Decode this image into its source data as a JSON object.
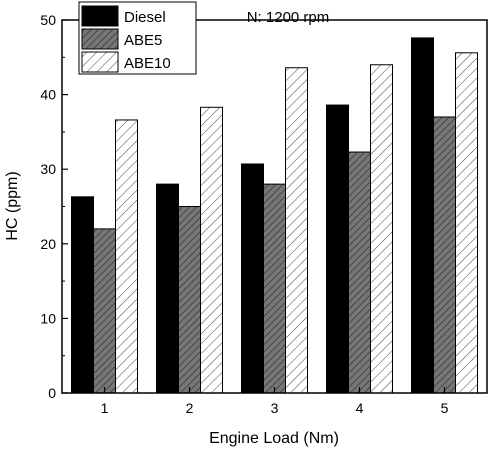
{
  "chart_data": {
    "type": "bar",
    "categories": [
      "1",
      "2",
      "3",
      "4",
      "5"
    ],
    "series": [
      {
        "name": "Diesel",
        "values": [
          26.3,
          28.0,
          30.7,
          38.6,
          47.6
        ],
        "fill": "#000000",
        "pattern": "solid"
      },
      {
        "name": "ABE5",
        "values": [
          22.0,
          25.0,
          28.0,
          32.3,
          37.0
        ],
        "fill": "#777777",
        "pattern": "dense-diagonal"
      },
      {
        "name": "ABE10",
        "values": [
          36.6,
          38.3,
          43.6,
          44.0,
          45.6
        ],
        "fill": "#ffffff",
        "pattern": "sparse-diagonal"
      }
    ],
    "xlabel": "Engine Load (Nm)",
    "ylabel": "HC (ppm)",
    "ylim": [
      0,
      50
    ],
    "yticks": [
      "0",
      "10",
      "20",
      "30",
      "40",
      "50"
    ],
    "annotation": "N: 1200 rpm",
    "grid": false,
    "legend": "top-left"
  }
}
